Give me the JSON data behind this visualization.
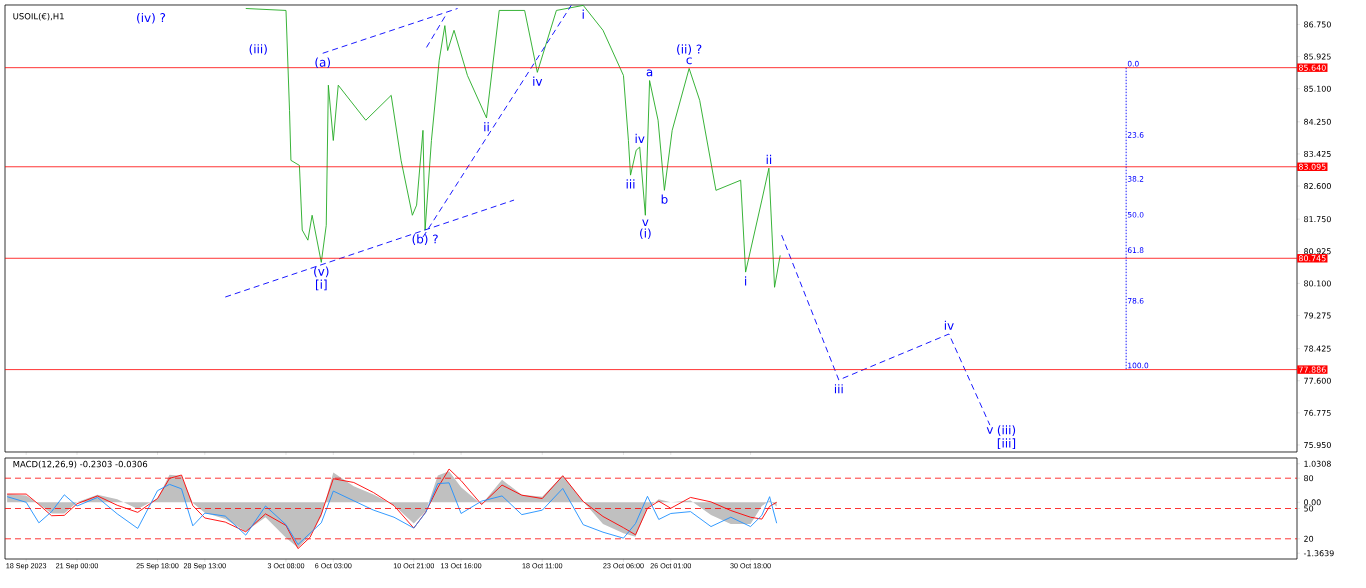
{
  "chart_data": [
    {
      "type": "line",
      "title": "USOIL(€),H1",
      "xlim": [
        "2023-09-16T18:00",
        "2023-12-02T00:00"
      ],
      "ylim": [
        75.77,
        87.25
      ],
      "tick_labels": "y",
      "xticks": [
        "2023-09-18T00:00",
        "2023-09-21T00:00",
        "2023-09-25T18:00",
        "2023-09-28T13:00",
        "2023-10-03T08:00",
        "2023-10-06T03:00",
        "2023-10-10T21:00",
        "2023-10-13T16:00",
        "2023-10-18T11:00",
        "2023-10-23T06:00",
        "2023-10-26T01:00",
        "2023-10-30T18:00"
      ],
      "yticks": [
        {
          "value": 86.75,
          "label": "86.750"
        },
        {
          "value": 85.925,
          "label": "85.925"
        },
        {
          "value": 85.1,
          "label": "85.100"
        },
        {
          "value": 84.25,
          "label": "84.250"
        },
        {
          "value": 83.425,
          "label": "83.425"
        },
        {
          "value": 82.6,
          "label": "82.600"
        },
        {
          "value": 81.75,
          "label": "81.750"
        },
        {
          "value": 80.925,
          "label": "80.925"
        },
        {
          "value": 80.1,
          "label": "80.100"
        },
        {
          "value": 79.275,
          "label": "79.275"
        },
        {
          "value": 78.425,
          "label": "78.425"
        },
        {
          "value": 77.6,
          "label": "77.600"
        },
        {
          "value": 76.775,
          "label": "76.775"
        },
        {
          "value": 75.95,
          "label": "75.950"
        }
      ],
      "series": [
        {
          "color": "#22aa22",
          "x": [
            "2023-09-30T23:00",
            "2023-10-03T08:00",
            "2023-10-03T13:00",
            "2023-10-03T15:00",
            "2023-10-04T03:00",
            "2023-10-04T07:00",
            "2023-10-04T15:00",
            "2023-10-04T21:00",
            "2023-10-05T10:00",
            "2023-10-05T17:00",
            "2023-10-05T20:00",
            "2023-10-06T03:00",
            "2023-10-06T10:00",
            "2023-10-08T01:00",
            "2023-10-09T13:00",
            "2023-10-10T03:00",
            "2023-10-10T19:00",
            "2023-10-11T01:00",
            "2023-10-11T10:00",
            "2023-10-11T13:00",
            "2023-10-11T22:00",
            "2023-10-12T09:00",
            "2023-10-12T17:00",
            "2023-10-12T21:00",
            "2023-10-13T06:00",
            "2023-10-14T01:00",
            "2023-10-15T04:00",
            "2023-10-15T22:00",
            "2023-10-17T10:00",
            "2023-10-18T04:00",
            "2023-10-19T07:00",
            "2023-10-20T21:00",
            "2023-10-22T01:00",
            "2023-10-23T06:00",
            "2023-10-23T13:00",
            "2023-10-23T16:00",
            "2023-10-24T00:00",
            "2023-10-24T05:00",
            "2023-10-24T13:00",
            "2023-10-24T19:00",
            "2023-10-25T07:00",
            "2023-10-25T16:00",
            "2023-10-26T03:00",
            "2023-10-27T03:00",
            "2023-10-27T18:00",
            "2023-10-28T17:00",
            "2023-10-30T04:00",
            "2023-10-30T11:00",
            "2023-10-31T10:00",
            "2023-10-31T20:00",
            "2023-11-01T04:00",
            "2023-11-01T12:00"
          ],
          "values": [
            87.16,
            87.11,
            84.54,
            83.26,
            83.13,
            81.47,
            81.21,
            81.85,
            80.64,
            81.59,
            85.19,
            83.77,
            85.19,
            84.29,
            84.93,
            83.26,
            81.85,
            82.11,
            84.03,
            81.47,
            83.77,
            85.83,
            86.72,
            86.08,
            86.6,
            85.44,
            84.35,
            87.11,
            87.11,
            85.52,
            87.11,
            87.24,
            86.6,
            85.44,
            83.77,
            82.88,
            83.52,
            83.6,
            81.85,
            85.31,
            84.29,
            82.49,
            84.03,
            85.62,
            84.8,
            82.49,
            82.75,
            80.39,
            82.24,
            83.06,
            80.0,
            80.82
          ]
        },
        {
          "color": "#0000ff",
          "line_style": "dashed",
          "x": [
            "2023-09-29T18:00",
            "2023-10-16T19:00"
          ],
          "values": [
            79.75,
            82.24
          ]
        },
        {
          "color": "#0000ff",
          "line_style": "dashed",
          "x": [
            "2023-10-05T12:00",
            "2023-10-13T11:00"
          ],
          "values": [
            86.01,
            87.16
          ]
        },
        {
          "color": "#0000ff",
          "line_style": "dashed",
          "x": [
            "2023-10-11T10:00",
            "2023-10-20T04:00"
          ],
          "values": [
            81.29,
            87.24
          ]
        },
        {
          "color": "#0000ff",
          "line_style": "dashed",
          "x": [
            "2023-10-11T15:00",
            "2023-10-12T18:00"
          ],
          "values": [
            86.16,
            86.98
          ]
        },
        {
          "color": "#0000ff",
          "line_style": "dashed",
          "x": [
            "2023-11-01T14:00",
            "2023-11-04T23:00",
            "2023-11-11T11:00",
            "2023-11-13T21:00"
          ],
          "values": [
            81.34,
            77.62,
            78.8,
            76.46
          ]
        },
        {
          "color": "#0000ff",
          "line_style": "dotted",
          "x": [
            "2023-11-21T22:00",
            "2023-11-21T22:00",
            "2023-11-21T22:00",
            "2023-11-21T22:00",
            "2023-11-21T22:00",
            "2023-11-21T22:00",
            "2023-11-21T22:00"
          ],
          "values": [
            85.64,
            83.81,
            82.68,
            81.76,
            80.85,
            79.55,
            77.89
          ]
        }
      ],
      "ref_lines": [
        {
          "axis": "y",
          "value": 85.64,
          "label": "85.640",
          "color": "#ff0000"
        },
        {
          "axis": "y",
          "value": 83.095,
          "label": "83.095",
          "color": "#ff0000"
        },
        {
          "axis": "y",
          "value": 80.745,
          "label": "80.745",
          "color": "#ff0000"
        },
        {
          "axis": "y",
          "value": 77.886,
          "label": "77.886",
          "color": "#ff0000"
        }
      ],
      "annotations": [
        "(iv) ?",
        "(iii)",
        {
          "text": "(a)",
          "x": "2023-10-05T12:00",
          "y": 86.01
        },
        {
          "text": "(v)",
          "x": "2023-10-05T10:00",
          "y": 80.64
        },
        {
          "text": "[i]",
          "x": "2023-10-05T10:00",
          "y": 80.64
        },
        {
          "text": "(b) ?",
          "x": "2023-10-11T13:00",
          "y": 81.47
        },
        {
          "text": "ii",
          "x": "2023-10-15T04:00",
          "y": 84.35
        },
        {
          "text": "iv",
          "x": "2023-10-18T04:00",
          "y": 85.52
        },
        {
          "text": "i",
          "x": "2023-10-20T21:00",
          "y": 87.24
        },
        {
          "text": "iii",
          "x": "2023-10-23T16:00",
          "y": 82.88
        },
        {
          "text": "iv",
          "x": "2023-10-24T05:00",
          "y": 83.6
        },
        {
          "text": "v",
          "x": "2023-10-24T13:00",
          "y": 81.85
        },
        {
          "text": "(i)",
          "x": "2023-10-24T13:00",
          "y": 81.85
        },
        {
          "text": "a",
          "x": "2023-10-24T19:00",
          "y": 85.31
        },
        {
          "text": "b",
          "x": "2023-10-25T16:00",
          "y": 82.49
        },
        {
          "text": "c",
          "x": "2023-10-27T03:00",
          "y": 85.62
        },
        {
          "text": "(ii) ?",
          "x": "2023-10-27T03:00",
          "y": 85.62
        },
        {
          "text": "i",
          "x": "2023-10-30T11:00",
          "y": 80.39
        },
        {
          "text": "ii",
          "x": "2023-10-31T20:00",
          "y": 83.06
        },
        {
          "text": "iii",
          "x": "2023-11-04T23:00",
          "y": 77.62
        },
        {
          "text": "iv",
          "x": "2023-11-11T11:00",
          "y": 78.8
        },
        {
          "text": "v",
          "x": "2023-11-13T21:00",
          "y": 76.46
        },
        {
          "text": "(iii)",
          "x": "2023-11-13T21:00",
          "y": 76.46
        },
        {
          "text": "[iii]",
          "x": "2023-11-13T21:00",
          "y": 76.46
        },
        {
          "text": "0.0",
          "x": "2023-11-21T22:00",
          "y": 85.64
        },
        {
          "text": "23.6",
          "x": "2023-11-21T22:00",
          "y": 83.81
        },
        {
          "text": "38.2",
          "x": "2023-11-21T22:00",
          "y": 82.68
        },
        {
          "text": "50.0",
          "x": "2023-11-21T22:00",
          "y": 81.76
        },
        {
          "text": "61.8",
          "x": "2023-11-21T22:00",
          "y": 80.85
        },
        {
          "text": "78.6",
          "x": "2023-11-21T22:00",
          "y": 79.55
        },
        {
          "text": "100.0",
          "x": "2023-11-21T22:00",
          "y": 77.89
        }
      ]
    },
    {
      "type": "line",
      "title": "MACD(12,26,9) -0.2303 -0.0306",
      "xlim": [
        "2023-09-16T18:00",
        "2023-12-02T00:00"
      ],
      "ylim": [
        -1.518,
        1.185
      ],
      "xticks": [
        {
          "value": "2023-09-18T00:00",
          "label": "18 Sep 2023"
        },
        {
          "value": "2023-09-21T00:00",
          "label": "21 Sep 00:00"
        },
        {
          "value": "2023-09-25T18:00",
          "label": "25 Sep 18:00"
        },
        {
          "value": "2023-09-28T13:00",
          "label": "28 Sep 13:00"
        },
        {
          "value": "2023-10-03T08:00",
          "label": "3 Oct 08:00"
        },
        {
          "value": "2023-10-06T03:00",
          "label": "6 Oct 03:00"
        },
        {
          "value": "2023-10-10T21:00",
          "label": "10 Oct 21:00"
        },
        {
          "value": "2023-10-13T16:00",
          "label": "13 Oct 16:00"
        },
        {
          "value": "2023-10-18T11:00",
          "label": "18 Oct 11:00"
        },
        {
          "value": "2023-10-23T06:00",
          "label": "23 Oct 06:00"
        },
        {
          "value": "2023-10-26T01:00",
          "label": "26 Oct 01:00"
        },
        {
          "value": "2023-10-30T18:00",
          "label": "30 Oct 18:00"
        }
      ],
      "yticks": [
        1.0308,
        {
          "value": 0,
          "label": "0.00"
        },
        -1.3639
      ],
      "y2lim": [
        0,
        100
      ],
      "y2ticks": [
        80,
        50,
        20
      ],
      "x": [
        "2023-09-16T21:00",
        "2023-09-18T00:00",
        "2023-09-18T18:00",
        "2023-09-19T12:00",
        "2023-09-20T06:00",
        "2023-09-21T00:00",
        "2023-09-22T05:00",
        "2023-09-23T09:00",
        "2023-09-24T14:00",
        "2023-09-25T18:00",
        "2023-09-26T11:00",
        "2023-09-27T04:00",
        "2023-09-27T20:00",
        "2023-09-28T13:00",
        "2023-09-29T18:00",
        "2023-09-30T23:00",
        "2023-10-02T03:00",
        "2023-10-03T08:00",
        "2023-10-04T01:00",
        "2023-10-04T18:00",
        "2023-10-05T10:00",
        "2023-10-06T03:00",
        "2023-10-07T08:00",
        "2023-10-08T12:00",
        "2023-10-09T17:00",
        "2023-10-10T21:00",
        "2023-10-11T14:00",
        "2023-10-12T07:00",
        "2023-10-12T23:00",
        "2023-10-13T16:00",
        "2023-10-14T21:00",
        "2023-10-16T02:00",
        "2023-10-17T06:00",
        "2023-10-18T11:00",
        "2023-10-19T16:00",
        "2023-10-20T21:00",
        "2023-10-22T01:00",
        "2023-10-23T06:00",
        "2023-10-23T23:00",
        "2023-10-24T16:00",
        "2023-10-25T08:00",
        "2023-10-26T01:00",
        "2023-10-27T05:00",
        "2023-10-28T10:00",
        "2023-10-29T14:00",
        "2023-10-30T18:00",
        "2023-10-31T10:00",
        "2023-10-31T21:00",
        "2023-11-01T07:00"
      ],
      "series": [
        {
          "type": "area",
          "color": "#c0c0c0",
          "values": [
            0.22,
            0.18,
            -0.05,
            -0.3,
            -0.3,
            0.0,
            0.2,
            0.08,
            -0.18,
            0.1,
            0.74,
            0.7,
            -0.02,
            -0.28,
            -0.45,
            -0.78,
            -0.4,
            -0.95,
            -1.22,
            -0.89,
            -0.38,
            0.8,
            0.43,
            0.21,
            -0.08,
            -0.57,
            -0.24,
            0.72,
            0.83,
            0.4,
            -0.06,
            0.6,
            0.2,
            0.15,
            0.72,
            0.02,
            -0.58,
            -0.83,
            -0.92,
            -0.15,
            0.08,
            0.0,
            0.05,
            -0.34,
            -0.58,
            -0.58,
            -0.1,
            0.05,
            -0.11
          ]
        },
        {
          "type": "line",
          "color": "#ff0000",
          "values": [
            0.22,
            0.22,
            -0.06,
            -0.36,
            -0.35,
            -0.04,
            0.17,
            -0.08,
            -0.27,
            0.1,
            0.64,
            0.73,
            -0.09,
            -0.42,
            -0.53,
            -0.79,
            -0.31,
            -0.62,
            -1.24,
            -0.94,
            -0.32,
            0.63,
            0.53,
            0.26,
            -0.09,
            -0.69,
            -0.26,
            0.39,
            0.89,
            0.58,
            -0.06,
            0.46,
            0.19,
            0.1,
            0.71,
            0.02,
            -0.38,
            -0.68,
            -0.87,
            -0.16,
            0.03,
            -0.16,
            0.13,
            0.01,
            -0.22,
            -0.4,
            -0.45,
            -0.11,
            0.0
          ]
        },
        {
          "type": "line",
          "color": "#1e90ff",
          "values": [
            0.15,
            0.0,
            -0.55,
            -0.25,
            0.2,
            -0.1,
            0.13,
            -0.31,
            -0.7,
            0.31,
            0.48,
            0.36,
            -0.63,
            -0.29,
            -0.37,
            -0.88,
            -0.1,
            -0.6,
            -1.13,
            -0.83,
            -0.55,
            0.3,
            0.04,
            -0.21,
            -0.4,
            -0.69,
            -0.27,
            0.5,
            0.52,
            -0.3,
            0.03,
            0.17,
            -0.33,
            -0.21,
            0.37,
            -0.6,
            -0.8,
            -0.96,
            -0.57,
            0.16,
            -0.46,
            -0.3,
            -0.25,
            -0.65,
            -0.4,
            -0.65,
            -0.35,
            0.15,
            -0.56
          ]
        }
      ],
      "ref_lines": [
        {
          "axis": "y2",
          "value": 80,
          "color": "#ff0000",
          "line_style": "dashed"
        },
        {
          "axis": "y2",
          "value": 50,
          "color": "#ff0000",
          "line_style": "dashed"
        },
        {
          "axis": "y2",
          "value": 20,
          "color": "#ff0000",
          "line_style": "dashed"
        }
      ]
    }
  ]
}
